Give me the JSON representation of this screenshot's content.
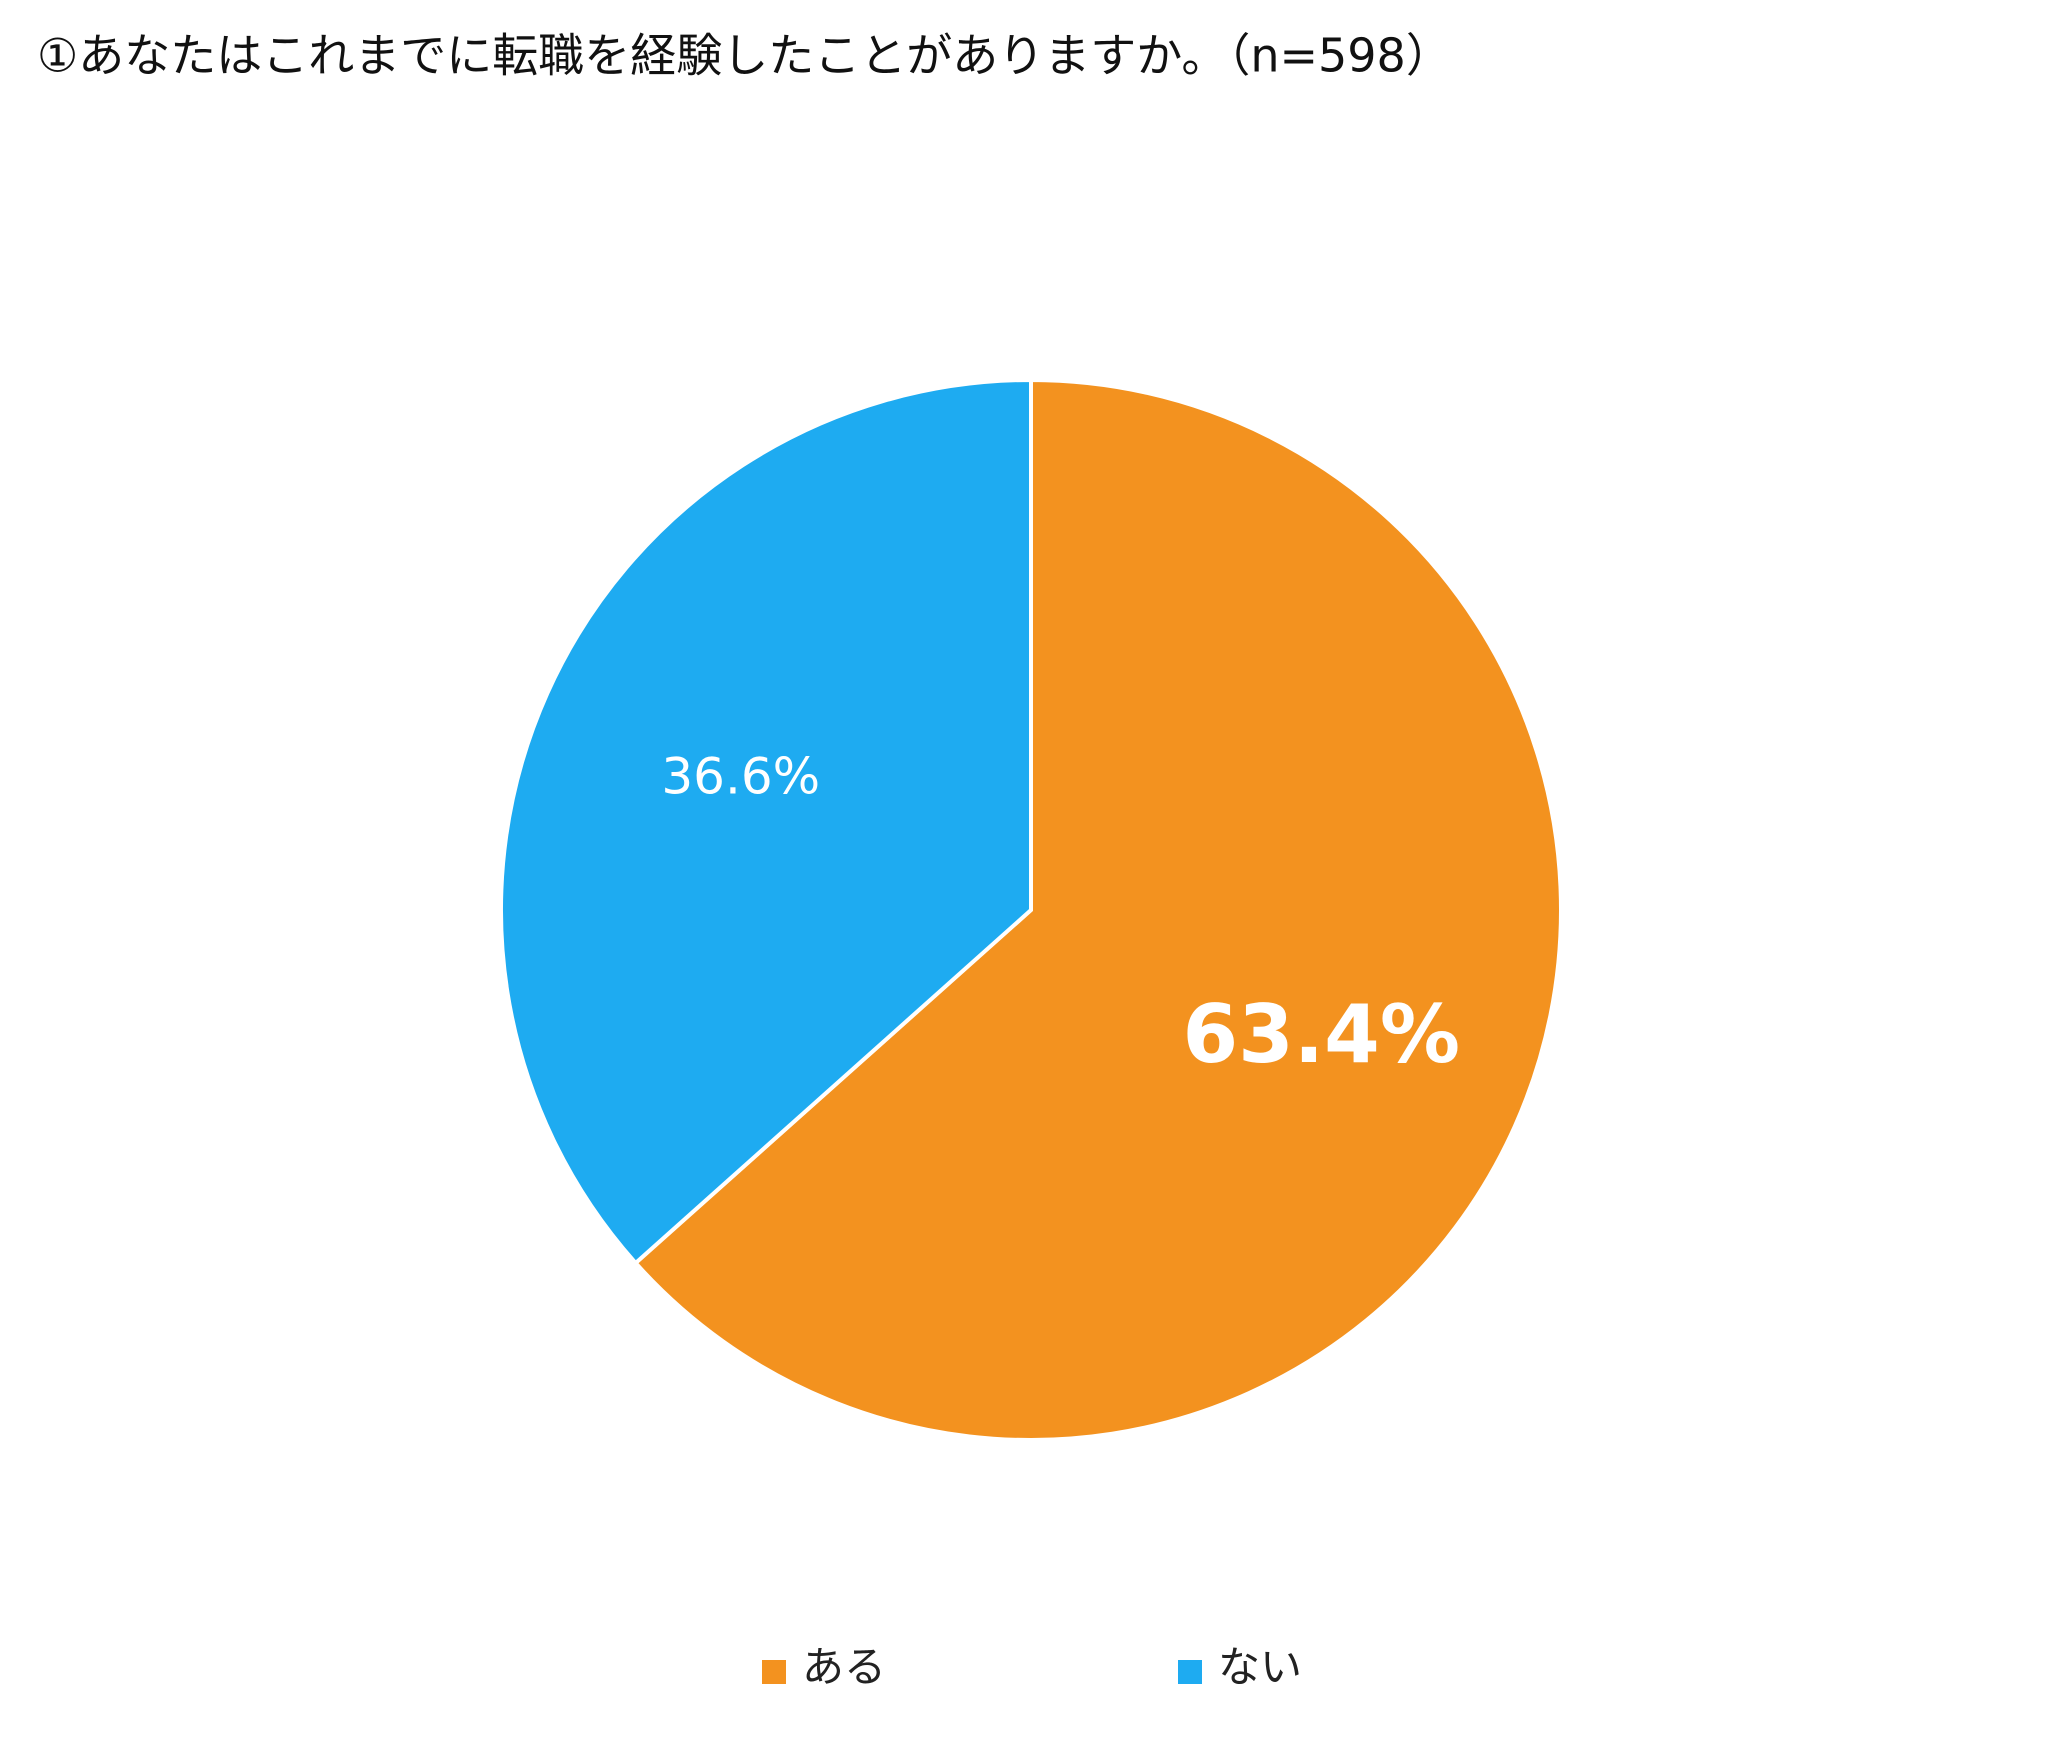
{
  "chart_data": {
    "type": "pie",
    "title": "①あなたはこれまでに転職を経験したことがありますか。（n=598）",
    "categories": [
      "ある",
      "ない"
    ],
    "values": [
      63.4,
      36.6
    ],
    "value_labels": [
      "63.4%",
      "36.6%"
    ],
    "colors": [
      "#f3921f",
      "#1eabf1"
    ],
    "legend": "bottom"
  }
}
